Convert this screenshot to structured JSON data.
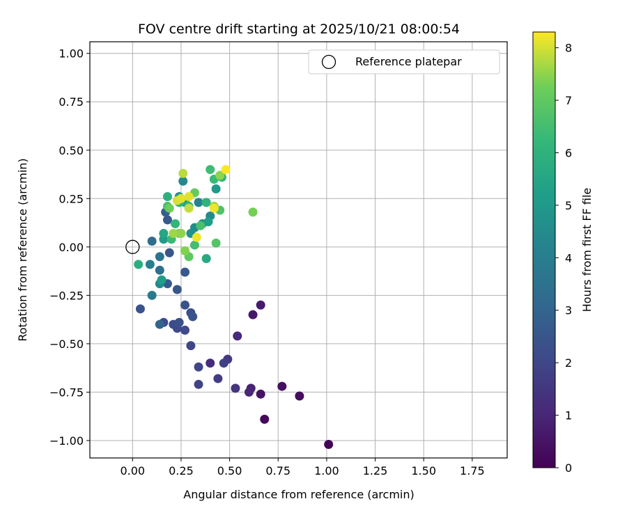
{
  "chart_data": {
    "type": "scatter",
    "title": "FOV centre drift starting at 2025/10/21 08:00:54",
    "xlabel": "Angular distance from reference (arcmin)",
    "ylabel": "Rotation from reference (arcmin)",
    "xlim": [
      -0.22,
      1.93
    ],
    "ylim": [
      -1.09,
      1.06
    ],
    "xticks": [
      0.0,
      0.25,
      0.5,
      0.75,
      1.0,
      1.25,
      1.5,
      1.75
    ],
    "xtick_labels": [
      "0.00",
      "0.25",
      "0.50",
      "0.75",
      "1.00",
      "1.25",
      "1.50",
      "1.75"
    ],
    "yticks": [
      -1.0,
      -0.75,
      -0.5,
      -0.25,
      0.0,
      0.25,
      0.5,
      0.75,
      1.0
    ],
    "ytick_labels": [
      "−1.00",
      "−0.75",
      "−0.50",
      "−0.25",
      "0.00",
      "0.25",
      "0.50",
      "0.75",
      "1.00"
    ],
    "grid": true,
    "legend": {
      "placement": "top-right",
      "entries": [
        "Reference platepar"
      ]
    },
    "colorbar": {
      "label": "Hours from first FF file",
      "colormap": "viridis",
      "range": [
        0,
        8.3
      ],
      "ticks": [
        0,
        1,
        2,
        3,
        4,
        5,
        6,
        7,
        8
      ],
      "tick_labels": [
        "0",
        "1",
        "2",
        "3",
        "4",
        "5",
        "6",
        "7",
        "8"
      ]
    },
    "reference_point": {
      "x": 0.0,
      "y": 0.0
    },
    "series": [
      {
        "points": [
          {
            "x": 1.01,
            "y": -1.02,
            "hours": 0.1
          },
          {
            "x": 0.68,
            "y": -0.89,
            "hours": 0.2
          },
          {
            "x": 0.86,
            "y": -0.77,
            "hours": 0.3
          },
          {
            "x": 0.77,
            "y": -0.72,
            "hours": 0.4
          },
          {
            "x": 0.66,
            "y": -0.76,
            "hours": 0.5
          },
          {
            "x": 0.62,
            "y": -0.35,
            "hours": 0.6
          },
          {
            "x": 0.66,
            "y": -0.3,
            "hours": 0.7
          },
          {
            "x": 0.61,
            "y": -0.73,
            "hours": 0.9
          },
          {
            "x": 0.6,
            "y": -0.75,
            "hours": 1.0
          },
          {
            "x": 0.54,
            "y": -0.46,
            "hours": 1.1
          },
          {
            "x": 0.4,
            "y": -0.6,
            "hours": 1.2
          },
          {
            "x": 0.53,
            "y": -0.73,
            "hours": 1.4
          },
          {
            "x": 0.49,
            "y": -0.58,
            "hours": 1.6
          },
          {
            "x": 0.44,
            "y": -0.68,
            "hours": 1.7
          },
          {
            "x": 0.47,
            "y": -0.6,
            "hours": 1.8
          },
          {
            "x": 0.34,
            "y": -0.71,
            "hours": 1.9
          },
          {
            "x": 0.34,
            "y": -0.62,
            "hours": 2.0
          },
          {
            "x": 0.3,
            "y": -0.51,
            "hours": 2.0
          },
          {
            "x": 0.27,
            "y": -0.43,
            "hours": 2.1
          },
          {
            "x": 0.23,
            "y": -0.42,
            "hours": 2.1
          },
          {
            "x": 0.21,
            "y": -0.4,
            "hours": 2.2
          },
          {
            "x": 0.16,
            "y": -0.39,
            "hours": 2.2
          },
          {
            "x": 0.24,
            "y": -0.39,
            "hours": 2.3
          },
          {
            "x": 0.3,
            "y": -0.34,
            "hours": 2.3
          },
          {
            "x": 0.31,
            "y": -0.36,
            "hours": 2.4
          },
          {
            "x": 0.27,
            "y": -0.3,
            "hours": 2.4
          },
          {
            "x": 0.04,
            "y": -0.32,
            "hours": 2.4
          },
          {
            "x": 0.23,
            "y": -0.22,
            "hours": 2.5
          },
          {
            "x": 0.18,
            "y": -0.19,
            "hours": 2.6
          },
          {
            "x": 0.27,
            "y": -0.13,
            "hours": 2.6
          },
          {
            "x": 0.19,
            "y": -0.03,
            "hours": 2.5
          },
          {
            "x": 0.18,
            "y": 0.14,
            "hours": 2.6
          },
          {
            "x": 0.17,
            "y": 0.18,
            "hours": 2.8
          },
          {
            "x": 0.14,
            "y": -0.4,
            "hours": 3.0
          },
          {
            "x": 0.1,
            "y": 0.03,
            "hours": 3.3
          },
          {
            "x": 0.14,
            "y": -0.12,
            "hours": 3.4
          },
          {
            "x": 0.14,
            "y": -0.05,
            "hours": 3.6
          },
          {
            "x": 0.1,
            "y": -0.25,
            "hours": 3.8
          },
          {
            "x": 0.09,
            "y": -0.09,
            "hours": 4.0
          },
          {
            "x": 0.14,
            "y": -0.19,
            "hours": 4.4
          },
          {
            "x": 0.26,
            "y": 0.34,
            "hours": 4.4
          },
          {
            "x": 0.34,
            "y": 0.23,
            "hours": 4.2
          },
          {
            "x": 0.32,
            "y": 0.1,
            "hours": 4.5
          },
          {
            "x": 0.36,
            "y": 0.12,
            "hours": 4.6
          },
          {
            "x": 0.4,
            "y": 0.16,
            "hours": 4.4
          },
          {
            "x": 0.3,
            "y": 0.07,
            "hours": 4.7
          },
          {
            "x": 0.24,
            "y": 0.26,
            "hours": 4.8
          },
          {
            "x": 0.43,
            "y": 0.3,
            "hours": 5.0
          },
          {
            "x": 0.16,
            "y": 0.04,
            "hours": 5.1
          },
          {
            "x": 0.15,
            "y": -0.17,
            "hours": 5.2
          },
          {
            "x": 0.39,
            "y": 0.13,
            "hours": 5.2
          },
          {
            "x": 0.27,
            "y": 0.23,
            "hours": 5.3
          },
          {
            "x": 0.16,
            "y": 0.07,
            "hours": 5.5
          },
          {
            "x": 0.38,
            "y": -0.06,
            "hours": 5.6
          },
          {
            "x": 0.03,
            "y": -0.09,
            "hours": 5.8
          },
          {
            "x": 0.18,
            "y": 0.26,
            "hours": 5.9
          },
          {
            "x": 0.24,
            "y": 0.23,
            "hours": 6.0
          },
          {
            "x": 0.38,
            "y": 0.23,
            "hours": 6.0
          },
          {
            "x": 0.22,
            "y": 0.12,
            "hours": 6.1
          },
          {
            "x": 0.29,
            "y": 0.21,
            "hours": 6.2
          },
          {
            "x": 0.46,
            "y": 0.36,
            "hours": 6.2
          },
          {
            "x": 0.2,
            "y": 0.04,
            "hours": 6.3
          },
          {
            "x": 0.42,
            "y": 0.35,
            "hours": 6.3
          },
          {
            "x": 0.4,
            "y": 0.4,
            "hours": 6.4
          },
          {
            "x": 0.32,
            "y": 0.01,
            "hours": 6.5
          },
          {
            "x": 0.18,
            "y": 0.21,
            "hours": 6.6
          },
          {
            "x": 0.45,
            "y": 0.19,
            "hours": 6.7
          },
          {
            "x": 0.35,
            "y": 0.11,
            "hours": 6.6
          },
          {
            "x": 0.43,
            "y": 0.02,
            "hours": 6.8
          },
          {
            "x": 0.29,
            "y": -0.05,
            "hours": 7.0
          },
          {
            "x": 0.24,
            "y": 0.07,
            "hours": 7.0
          },
          {
            "x": 0.32,
            "y": 0.28,
            "hours": 7.1
          },
          {
            "x": 0.19,
            "y": 0.2,
            "hours": 7.2
          },
          {
            "x": 0.62,
            "y": 0.18,
            "hours": 7.3
          },
          {
            "x": 0.27,
            "y": -0.02,
            "hours": 7.4
          },
          {
            "x": 0.25,
            "y": 0.07,
            "hours": 7.5
          },
          {
            "x": 0.45,
            "y": 0.37,
            "hours": 7.5
          },
          {
            "x": 0.21,
            "y": 0.07,
            "hours": 7.6
          },
          {
            "x": 0.42,
            "y": 0.21,
            "hours": 7.6
          },
          {
            "x": 0.26,
            "y": 0.38,
            "hours": 7.8
          },
          {
            "x": 0.29,
            "y": 0.2,
            "hours": 7.9
          },
          {
            "x": 0.23,
            "y": 0.24,
            "hours": 8.0
          },
          {
            "x": 0.25,
            "y": 0.25,
            "hours": 8.1
          },
          {
            "x": 0.29,
            "y": 0.26,
            "hours": 8.1
          },
          {
            "x": 0.33,
            "y": 0.05,
            "hours": 8.2
          },
          {
            "x": 0.42,
            "y": 0.2,
            "hours": 8.2
          },
          {
            "x": 0.48,
            "y": 0.4,
            "hours": 8.3
          }
        ]
      }
    ]
  }
}
